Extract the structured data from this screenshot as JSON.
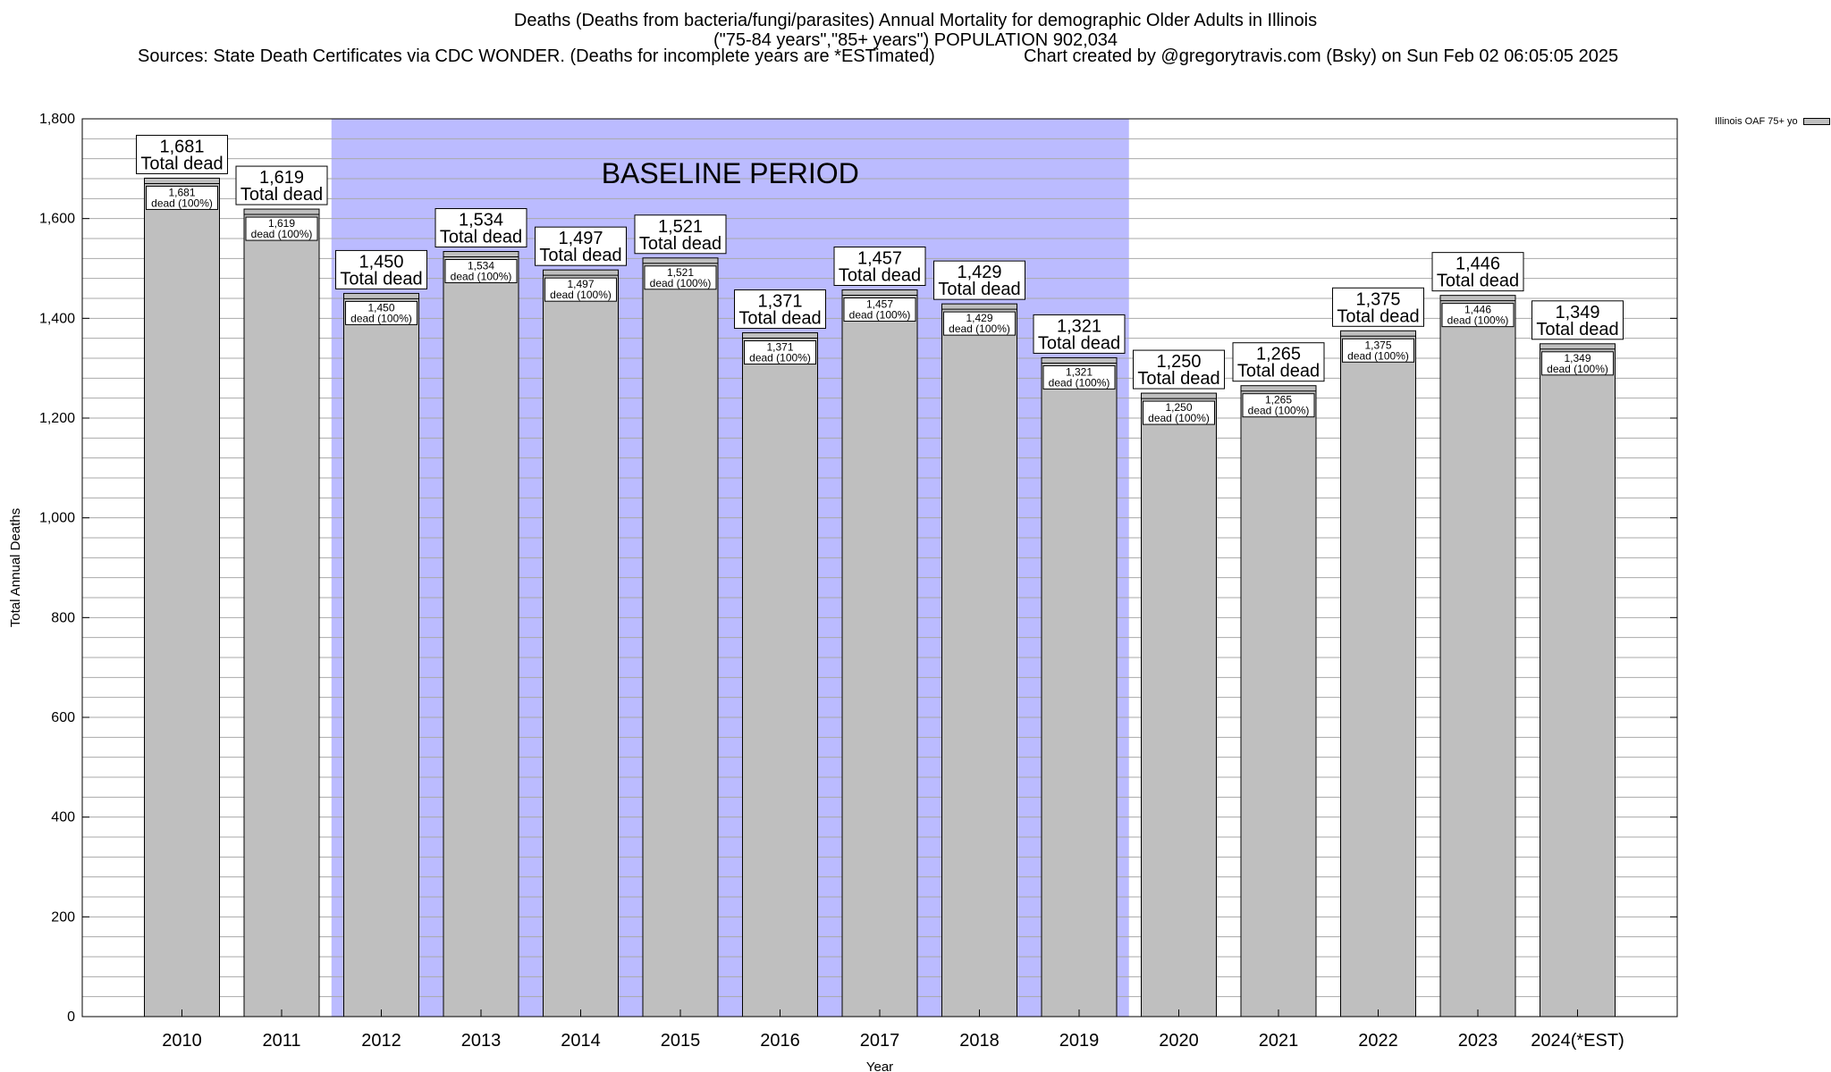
{
  "chart_data": {
    "type": "bar",
    "title": "Deaths (Deaths from bacteria/fungi/parasites) Annual Mortality for demographic Older Adults in Illinois",
    "subtitle": "(\"75-84 years\",\"85+ years\") POPULATION 902,034",
    "sources": "Sources: State Death Certificates via CDC WONDER. (Deaths for incomplete years are *ESTimated)",
    "credit": "Chart created by @gregorytravis.com (Bsky) on Sun Feb 02 06:05:05 2025",
    "xlabel": "Year",
    "ylabel": "Total Annual Deaths",
    "ylim": [
      0,
      1800
    ],
    "yticks": [
      0,
      200,
      400,
      600,
      800,
      1000,
      1200,
      1400,
      1600,
      1800
    ],
    "ytick_labels": [
      "0",
      "200",
      "400",
      "600",
      "800",
      "1,000",
      "1,200",
      "1,400",
      "1,600",
      "1,800"
    ],
    "categories": [
      "2010",
      "2011",
      "2012",
      "2013",
      "2014",
      "2015",
      "2016",
      "2017",
      "2018",
      "2019",
      "2020",
      "2021",
      "2022",
      "2023",
      "2024(*EST)"
    ],
    "series": [
      {
        "name": "Illinois OAF 75+ yo",
        "color": "#bfbfbf",
        "values": [
          1681,
          1619,
          1450,
          1534,
          1497,
          1521,
          1371,
          1457,
          1429,
          1321,
          1250,
          1265,
          1375,
          1446,
          1349
        ],
        "value_labels": [
          "1,681",
          "1,619",
          "1,450",
          "1,534",
          "1,497",
          "1,521",
          "1,371",
          "1,457",
          "1,429",
          "1,321",
          "1,250",
          "1,265",
          "1,375",
          "1,446",
          "1,349"
        ]
      }
    ],
    "total_label": "Total dead",
    "segment_label": "dead (100%)",
    "baseline": {
      "label": "BASELINE PERIOD",
      "from": "2012",
      "to": "2019",
      "color": "#bbbbff"
    },
    "grid": true,
    "minor_grid_step": 40,
    "legend_position": "top-right"
  }
}
